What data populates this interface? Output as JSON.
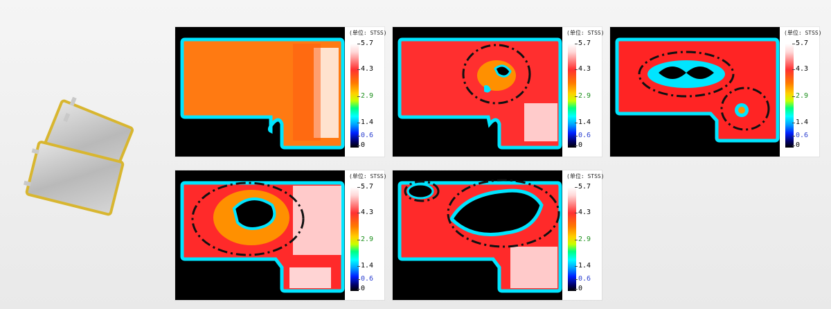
{
  "colorbar": {
    "unit_label": "(单位: STSS)",
    "ticks": [
      {
        "label": "5.7",
        "color": "#222222"
      },
      {
        "label": "4.3",
        "color": "#222222"
      },
      {
        "label": "2.9",
        "color": "#1b8f1b"
      },
      {
        "label": "1.4",
        "color": "#222222"
      },
      {
        "label": "0.6",
        "color": "#2b3fd0"
      },
      {
        "label": "0",
        "color": "#222222"
      }
    ]
  },
  "colors": {
    "background": "#efefef",
    "heat_high": "#ff2a2a",
    "heat_mid": "#ff8a00",
    "cold_edge": "#00e5ff",
    "void": "#000000",
    "highlight_marker": "#111111"
  },
  "panels": [
    {
      "id": "p1",
      "base_color": "#ff7a12",
      "marked_regions": 0
    },
    {
      "id": "p2",
      "base_color": "#ff2f2f",
      "marked_regions": 1
    },
    {
      "id": "p3",
      "base_color": "#ff2424",
      "marked_regions": 2
    },
    {
      "id": "p4",
      "base_color": "#ff2a2a",
      "marked_regions": 1
    },
    {
      "id": "p5",
      "base_color": "#ff2a2a",
      "marked_regions": 2
    }
  ]
}
